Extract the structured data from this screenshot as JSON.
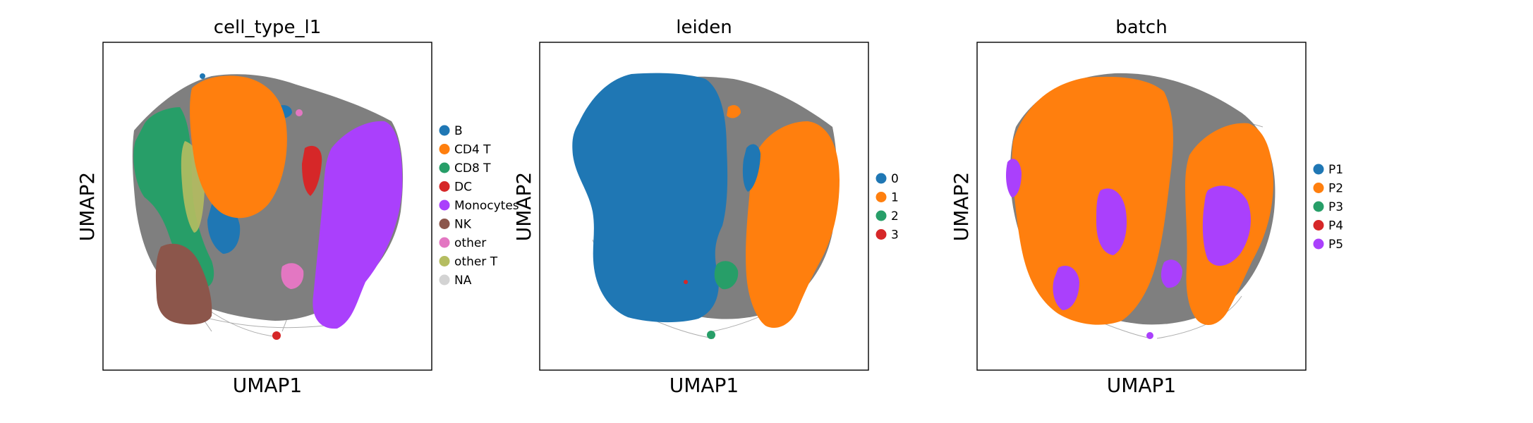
{
  "chart_data": [
    {
      "type": "scatter",
      "title": "cell_type_l1",
      "xlabel": "UMAP1",
      "ylabel": "UMAP2",
      "ticks": "none",
      "grid": false,
      "legend_position": "right",
      "legend": [
        {
          "name": "B",
          "color": "#1f77b4"
        },
        {
          "name": "CD4 T",
          "color": "#ff7f0e"
        },
        {
          "name": "CD8 T",
          "color": "#279e68"
        },
        {
          "name": "DC",
          "color": "#d62728"
        },
        {
          "name": "Monocytes",
          "color": "#aa40fc"
        },
        {
          "name": "NK",
          "color": "#8c564b"
        },
        {
          "name": "other",
          "color": "#e377c2"
        },
        {
          "name": "other T",
          "color": "#b5bd61"
        },
        {
          "name": "NA",
          "color": "#d3d3d3"
        }
      ]
    },
    {
      "type": "scatter",
      "title": "leiden",
      "xlabel": "UMAP1",
      "ylabel": "UMAP2",
      "ticks": "none",
      "grid": false,
      "legend_position": "right",
      "legend": [
        {
          "name": "0",
          "color": "#1f77b4"
        },
        {
          "name": "1",
          "color": "#ff7f0e"
        },
        {
          "name": "2",
          "color": "#279e68"
        },
        {
          "name": "3",
          "color": "#d62728"
        }
      ]
    },
    {
      "type": "scatter",
      "title": "batch",
      "xlabel": "UMAP1",
      "ylabel": "UMAP2",
      "ticks": "none",
      "grid": false,
      "legend_position": "right",
      "legend": [
        {
          "name": "P1",
          "color": "#1f77b4"
        },
        {
          "name": "P2",
          "color": "#ff7f0e"
        },
        {
          "name": "P3",
          "color": "#279e68"
        },
        {
          "name": "P4",
          "color": "#d62728"
        },
        {
          "name": "P5",
          "color": "#aa40fc"
        }
      ]
    }
  ]
}
